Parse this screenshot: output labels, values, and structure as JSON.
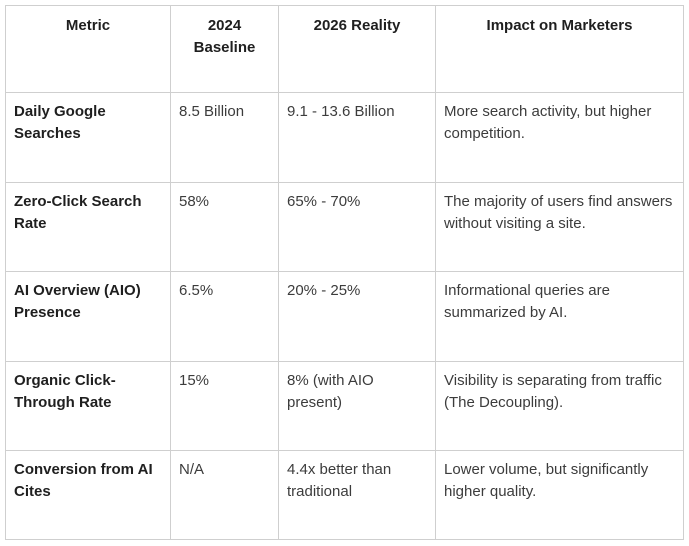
{
  "table": {
    "headers": [
      "Metric",
      "2024 Baseline",
      "2026 Reality",
      "Impact on Marketers"
    ],
    "rows": [
      {
        "metric": "Daily Google Searches",
        "baseline_2024": "8.5 Billion",
        "reality_2026": "9.1 - 13.6 Billion",
        "impact": "More search activity, but higher competition."
      },
      {
        "metric": "Zero-Click Search Rate",
        "baseline_2024": "58%",
        "reality_2026": "65% - 70%",
        "impact": "The majority of users find answers without visiting a site."
      },
      {
        "metric": "AI Overview (AIO) Presence",
        "baseline_2024": "6.5%",
        "reality_2026": "20% - 25%",
        "impact": "Informational queries are summarized by AI."
      },
      {
        "metric": "Organic Click-Through Rate",
        "baseline_2024": "15%",
        "reality_2026": "8% (with AIO present)",
        "impact": "Visibility is separating from traffic (The Decoupling)."
      },
      {
        "metric": "Conversion from AI Cites",
        "baseline_2024": "N/A",
        "reality_2026": "4.4x better than traditional",
        "impact": "Lower volume, but significantly higher quality."
      }
    ]
  }
}
